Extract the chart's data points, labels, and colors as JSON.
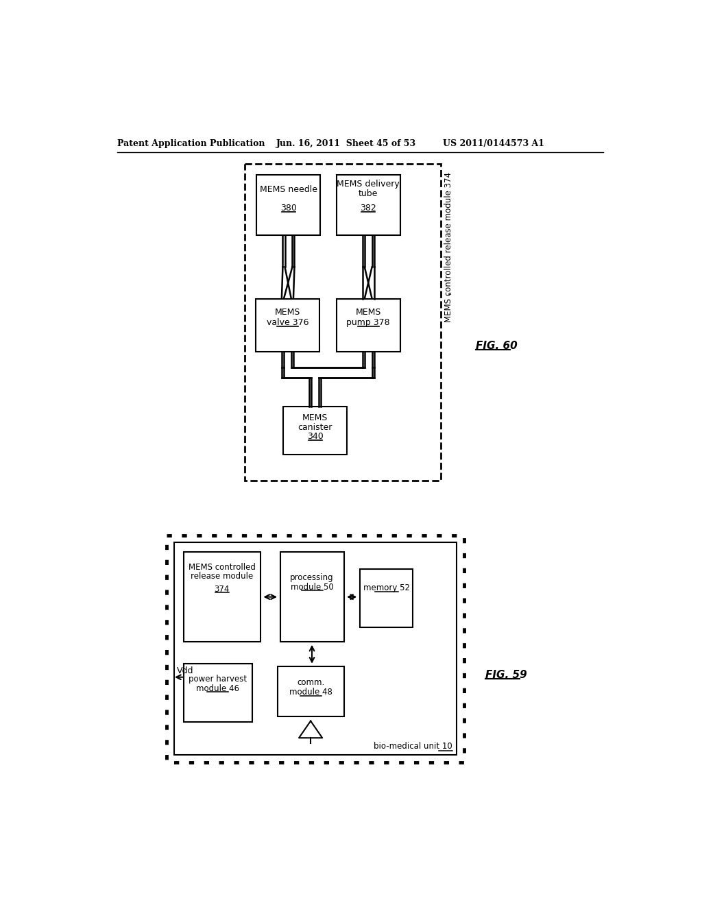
{
  "header_left": "Patent Application Publication",
  "header_mid": "Jun. 16, 2011  Sheet 45 of 53",
  "header_right": "US 2011/0144573 A1",
  "fig59_label": "FIG. 59",
  "fig60_label": "FIG. 60",
  "bg_color": "#ffffff"
}
